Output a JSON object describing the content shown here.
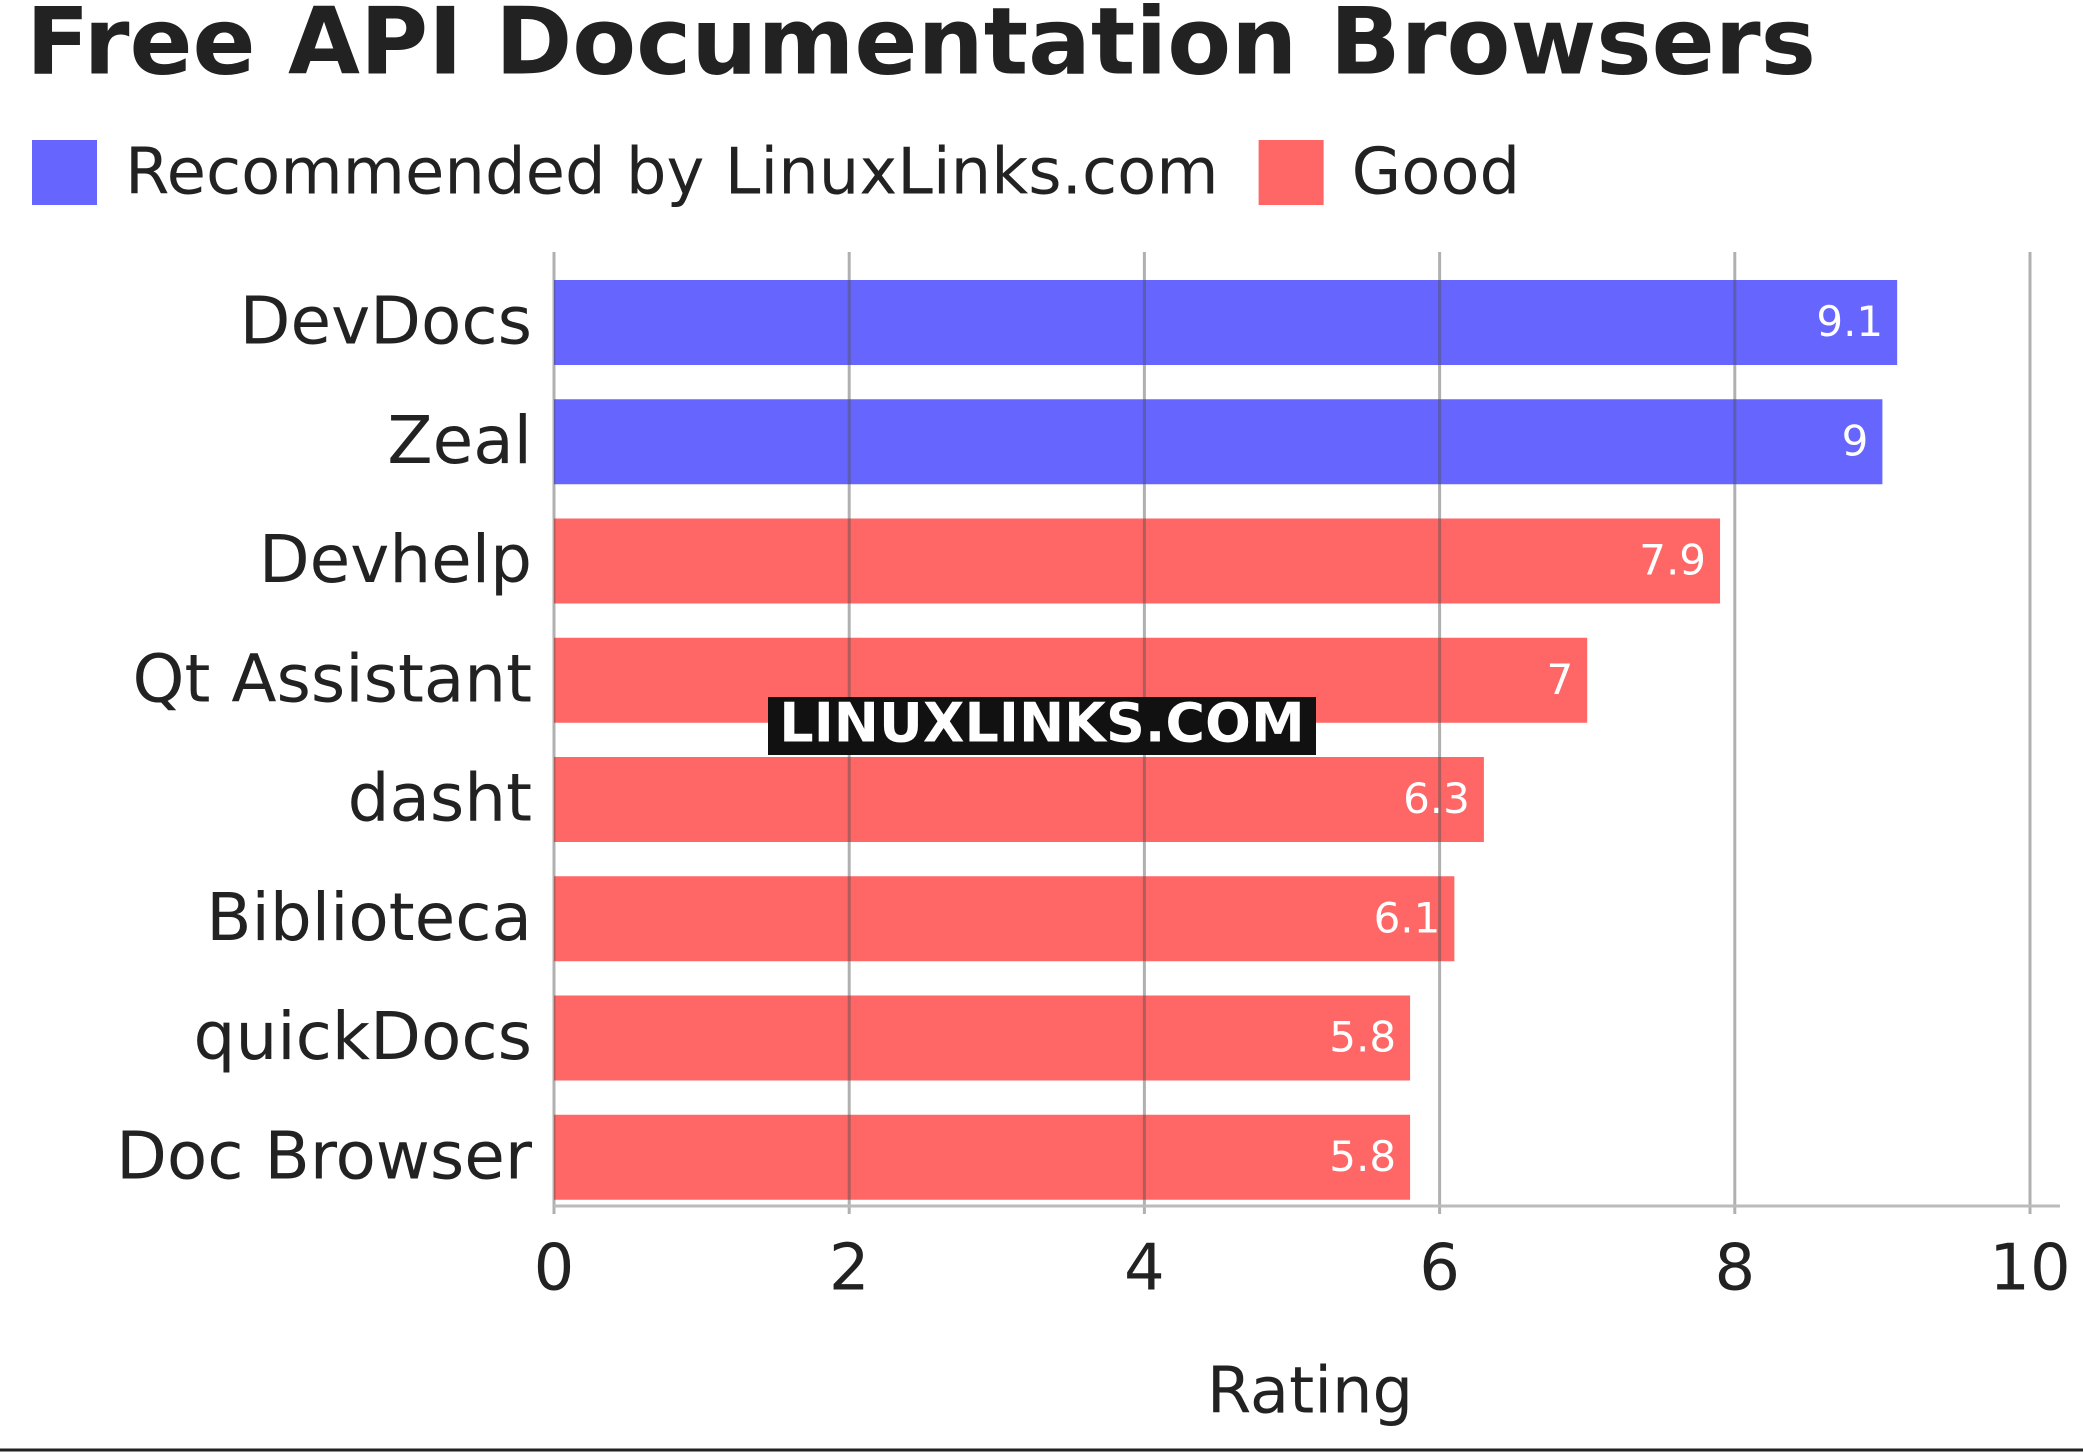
{
  "chart_data": {
    "type": "bar",
    "orientation": "horizontal",
    "title": "Free API Documentation Browsers",
    "categories": [
      "DevDocs",
      "Zeal",
      "Devhelp",
      "Qt Assistant",
      "dasht",
      "Biblioteca",
      "quickDocs",
      "Doc Browser"
    ],
    "series": [
      {
        "name": "Recommended by LinuxLinks.com",
        "color": "#6666ff",
        "values": [
          9.1,
          9,
          null,
          null,
          null,
          null,
          null,
          null
        ]
      },
      {
        "name": "Good",
        "color": "#ff6666",
        "values": [
          null,
          null,
          7.9,
          7,
          6.3,
          6.1,
          5.8,
          5.8
        ]
      }
    ],
    "xlabel": "Rating",
    "xlim": [
      0,
      10
    ],
    "xticks": [
      0,
      2,
      4,
      6,
      8,
      10
    ],
    "grid": true,
    "watermark": "LINUXLINKS.COM"
  }
}
